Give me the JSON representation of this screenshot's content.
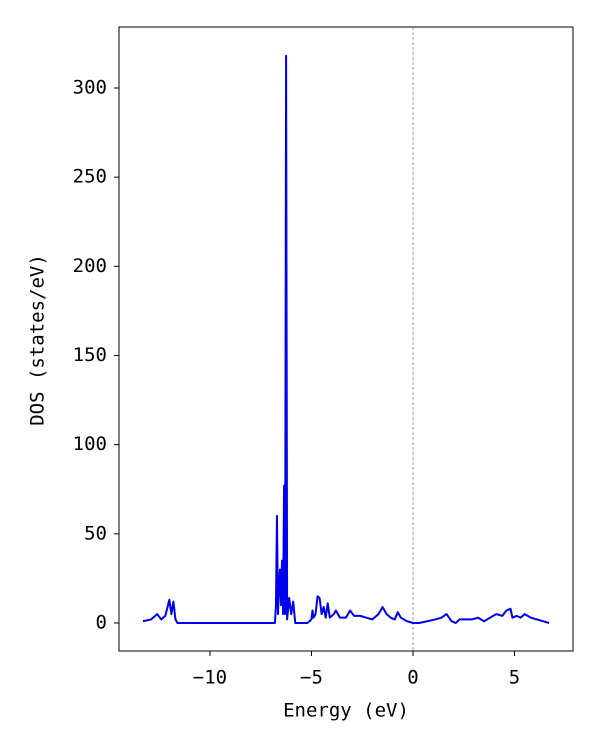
{
  "chart_data": {
    "type": "line",
    "xlabel": "Energy (eV)",
    "ylabel": "DOS (states/eV)",
    "x": [
      -13.3,
      -12.9,
      -12.6,
      -12.4,
      -12.2,
      -12.0,
      -11.9,
      -11.8,
      -11.7,
      -11.6,
      -7.0,
      -6.8,
      -6.75,
      -6.7,
      -6.65,
      -6.6,
      -6.55,
      -6.5,
      -6.45,
      -6.4,
      -6.35,
      -6.3,
      -6.25,
      -6.2,
      -6.1,
      -6.0,
      -5.9,
      -5.8,
      -5.2,
      -5.0,
      -4.95,
      -4.9,
      -4.8,
      -4.7,
      -4.6,
      -4.5,
      -4.4,
      -4.3,
      -4.2,
      -4.1,
      -3.9,
      -3.8,
      -3.6,
      -3.3,
      -3.1,
      -2.9,
      -2.6,
      -2.3,
      -2.0,
      -1.7,
      -1.5,
      -1.3,
      -1.1,
      -0.9,
      -0.75,
      -0.6,
      -0.3,
      0.0,
      0.3,
      0.7,
      1.1,
      1.4,
      1.65,
      1.9,
      2.1,
      2.3,
      2.6,
      2.9,
      3.2,
      3.5,
      3.8,
      4.1,
      4.4,
      4.6,
      4.8,
      4.9,
      5.1,
      5.3,
      5.5,
      5.8,
      6.1,
      6.4,
      6.7
    ],
    "values": [
      1,
      2,
      5,
      2,
      4,
      13,
      5,
      12,
      2,
      0,
      0,
      0,
      10,
      60,
      5,
      20,
      30,
      10,
      35,
      5,
      77,
      5,
      318,
      2,
      14,
      5,
      12,
      0,
      0,
      2,
      7,
      3,
      5,
      15,
      14,
      5,
      9,
      3,
      11,
      3,
      5,
      7,
      3,
      3,
      7,
      4,
      4,
      3,
      2,
      5,
      9,
      5,
      3,
      2,
      6,
      3,
      1,
      0,
      0,
      1,
      2,
      3,
      5,
      1,
      0,
      2,
      2,
      2,
      3,
      1,
      3,
      5,
      4,
      7,
      8,
      3,
      4,
      3,
      5,
      3,
      2,
      1,
      0
    ],
    "color": "#0000ee",
    "vline": 0,
    "vline_color": "#888888",
    "xlim": [
      -14.48,
      7.88
    ],
    "ylim": [
      -15.7,
      334.2
    ],
    "xticks": [
      {
        "value": -10,
        "label": "−10"
      },
      {
        "value": -5,
        "label": "−5"
      },
      0,
      5
    ],
    "yticks": [
      0,
      50,
      100,
      150,
      200,
      250,
      300
    ],
    "grid": false
  }
}
